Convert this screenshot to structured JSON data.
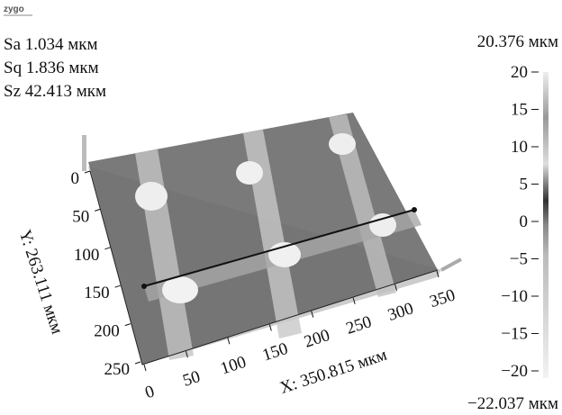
{
  "logo": "zygo",
  "stats": [
    "Sa 1.034 мкм",
    "Sq 1.836 мкм",
    "Sz 42.413 мкм"
  ],
  "colorbar": {
    "max_label": "20.376 мкм",
    "min_label": "−22.037 мкм",
    "ticks": [
      "20",
      "15",
      "10",
      "5",
      "0",
      "−5",
      "−10",
      "−15",
      "−20"
    ]
  },
  "y_axis": {
    "label": "Y: 263.111 мкм",
    "ticks": [
      "0",
      "50",
      "100",
      "150",
      "200",
      "250"
    ]
  },
  "x_axis": {
    "label": "X: 350.815 мкм",
    "ticks": [
      "0",
      "50",
      "100",
      "150",
      "200",
      "250",
      "300",
      "350"
    ]
  }
}
